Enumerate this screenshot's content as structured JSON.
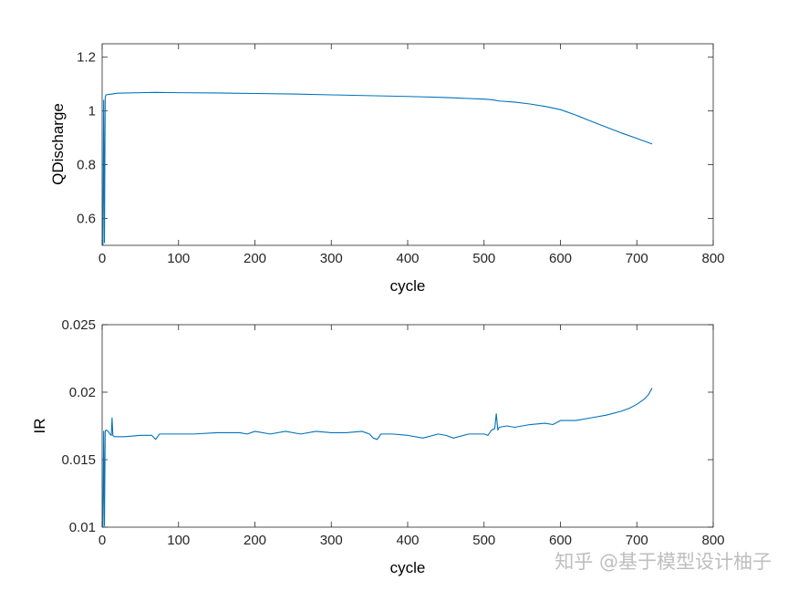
{
  "watermark": "知乎 @基于模型设计柚子",
  "chart_data": [
    {
      "type": "line",
      "xlabel": "cycle",
      "ylabel": "QDischarge",
      "xlim": [
        0,
        800
      ],
      "ylim": [
        0.5,
        1.25
      ],
      "xticks": [
        0,
        100,
        200,
        300,
        400,
        500,
        600,
        700,
        800
      ],
      "yticks": [
        0.6,
        0.8,
        1,
        1.2
      ],
      "yticklabels": [
        "0.6",
        "0.8",
        "1",
        "1.2"
      ],
      "grid": false,
      "series_color": "#0072BD",
      "x": [
        1,
        2,
        3,
        4,
        5,
        10,
        20,
        50,
        70,
        100,
        150,
        200,
        250,
        300,
        350,
        400,
        450,
        500,
        510,
        520,
        540,
        560,
        580,
        600,
        620,
        640,
        660,
        680,
        700,
        720
      ],
      "y": [
        0.5,
        1.04,
        0.51,
        1.05,
        1.06,
        1.062,
        1.066,
        1.068,
        1.069,
        1.068,
        1.067,
        1.065,
        1.063,
        1.06,
        1.057,
        1.054,
        1.05,
        1.044,
        1.042,
        1.037,
        1.033,
        1.026,
        1.017,
        1.005,
        0.985,
        0.962,
        0.94,
        0.918,
        0.898,
        0.877
      ]
    },
    {
      "type": "line",
      "xlabel": "cycle",
      "ylabel": "IR",
      "xlim": [
        0,
        800
      ],
      "ylim": [
        0.01,
        0.025
      ],
      "xticks": [
        0,
        100,
        200,
        300,
        400,
        500,
        600,
        700,
        800
      ],
      "yticks": [
        0.01,
        0.015,
        0.02,
        0.025
      ],
      "yticklabels": [
        "0.01",
        "0.015",
        "0.02",
        "0.025"
      ],
      "grid": false,
      "series_color": "#0072BD",
      "x": [
        1,
        2,
        3,
        4,
        5,
        8,
        10,
        12,
        13,
        14,
        16,
        30,
        50,
        65,
        70,
        75,
        80,
        100,
        120,
        150,
        180,
        190,
        200,
        220,
        240,
        260,
        280,
        300,
        320,
        340,
        350,
        355,
        360,
        365,
        380,
        400,
        420,
        440,
        450,
        460,
        480,
        500,
        505,
        510,
        514,
        516,
        518,
        520,
        530,
        540,
        560,
        580,
        590,
        600,
        620,
        640,
        660,
        680,
        690,
        700,
        710,
        715,
        720
      ],
      "y": [
        0.01,
        0.0171,
        0.0101,
        0.0171,
        0.0172,
        0.0171,
        0.0169,
        0.0168,
        0.0181,
        0.0168,
        0.0167,
        0.0167,
        0.0168,
        0.0168,
        0.0165,
        0.0169,
        0.0169,
        0.0169,
        0.0169,
        0.017,
        0.017,
        0.0169,
        0.0171,
        0.0169,
        0.0171,
        0.0169,
        0.0171,
        0.017,
        0.017,
        0.0171,
        0.0169,
        0.0166,
        0.0165,
        0.0169,
        0.0169,
        0.0168,
        0.0166,
        0.0169,
        0.0168,
        0.0166,
        0.0169,
        0.0169,
        0.0168,
        0.0172,
        0.0173,
        0.0184,
        0.0172,
        0.0174,
        0.0175,
        0.0174,
        0.0176,
        0.0177,
        0.0176,
        0.0179,
        0.0179,
        0.0181,
        0.0183,
        0.0186,
        0.0188,
        0.0191,
        0.0195,
        0.0198,
        0.0203
      ]
    }
  ]
}
